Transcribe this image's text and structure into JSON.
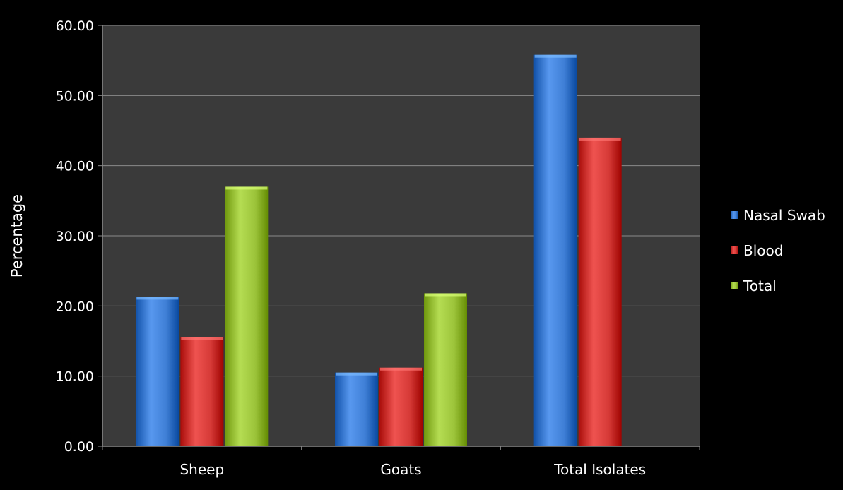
{
  "chart_data": {
    "type": "bar",
    "title": "",
    "xlabel": "",
    "ylabel": "Percentage",
    "ylim": [
      0,
      60
    ],
    "yticks": [
      "0.00",
      "10.00",
      "20.00",
      "30.00",
      "40.00",
      "50.00",
      "60.00"
    ],
    "ytick_values": [
      0,
      10,
      20,
      30,
      40,
      50,
      60
    ],
    "categories": [
      "Sheep",
      "Goats",
      "Total Isolates"
    ],
    "grid": true,
    "legend_position": "right",
    "series": [
      {
        "name": "Nasal Swab",
        "color": "#3f7fd6",
        "values": [
          21.3,
          10.5,
          55.8
        ]
      },
      {
        "name": "Blood",
        "color": "#d63a37",
        "values": [
          15.6,
          11.2,
          44.0
        ]
      },
      {
        "name": "Total",
        "color": "#9cc43a",
        "values": [
          37.0,
          21.8,
          null
        ]
      }
    ]
  },
  "colors": {
    "background": "#000000",
    "plot_area": "#3a3a3a",
    "gridline": "#8a8a8a",
    "text": "#ffffff"
  }
}
